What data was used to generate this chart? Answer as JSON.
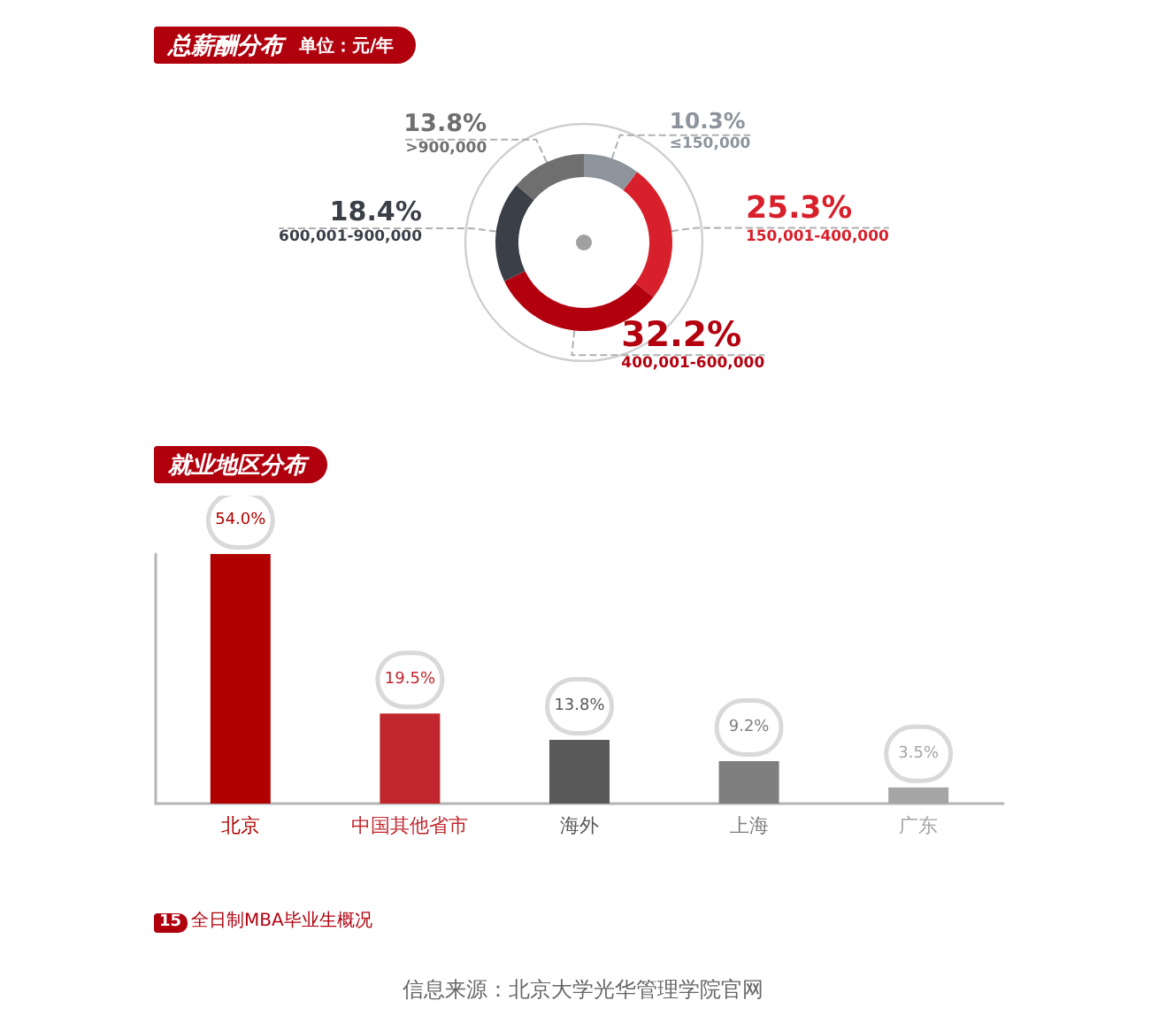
{
  "chart_data": [
    {
      "type": "donut",
      "title": "总薪酬分布",
      "subtitle": "单位：元/年",
      "categories": [
        "≤150,000",
        "150,001-400,000",
        "400,001-600,000",
        "600,001-900,000",
        ">900,000"
      ],
      "values": [
        10.3,
        25.3,
        32.2,
        18.4,
        13.8
      ],
      "colors": [
        "#8d949c",
        "#d8202c",
        "#b3000f",
        "#3b3f48",
        "#6f6f6f"
      ],
      "value_labels": [
        "10.3%",
        "25.3%",
        "32.2%",
        "18.4%",
        "13.8%"
      ]
    },
    {
      "type": "bar",
      "title": "就业地区分布",
      "categories": [
        "北京",
        "中国其他省市",
        "海外",
        "上海",
        "广东"
      ],
      "values": [
        54.0,
        19.5,
        13.8,
        9.2,
        3.5
      ],
      "colors": [
        "#b00000",
        "#c1262e",
        "#595959",
        "#7f7f7f",
        "#a5a5a5"
      ],
      "value_labels": [
        "54.0%",
        "19.5%",
        "13.8%",
        "9.2%",
        "3.5%"
      ],
      "tick_labels": "x",
      "annotations": [
        "15",
        "全日制MBA毕业生概况",
        "信息来源：北京大学光华管理学院官网"
      ]
    }
  ]
}
